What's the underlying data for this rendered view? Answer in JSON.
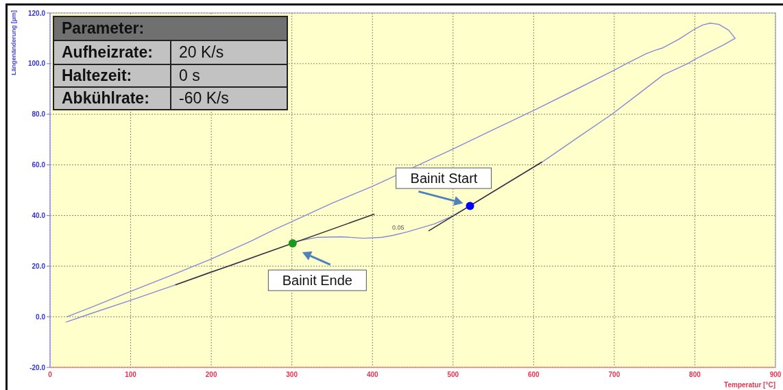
{
  "chart_data": {
    "type": "line",
    "xlabel": "Temperatur [°C]",
    "ylabel": "Längenänderung [µm]",
    "xlim": [
      0,
      900
    ],
    "xticks": [
      0,
      100,
      200,
      300,
      400,
      500,
      600,
      700,
      800,
      900
    ],
    "ylim": [
      -20,
      120
    ],
    "yticks": [
      {
        "value": -20,
        "label": "-20.0"
      },
      {
        "value": 0,
        "label": "0.0"
      },
      {
        "value": 20,
        "label": "20.0"
      },
      {
        "value": 40,
        "label": "40.0"
      },
      {
        "value": 60,
        "label": "60.0"
      },
      {
        "value": 80,
        "label": "80.0"
      },
      {
        "value": 100,
        "label": "100.0"
      },
      {
        "value": 120,
        "label": "120.0"
      }
    ],
    "grid": true,
    "series": [
      {
        "type": "line",
        "color": "#8888d8",
        "x": [
          21,
          50,
          100,
          150,
          200,
          250,
          278,
          300,
          350,
          400,
          450,
          500,
          550,
          590,
          600,
          650,
          700,
          715,
          740,
          752,
          760,
          780,
          800,
          810,
          819,
          830,
          842,
          850,
          835,
          818,
          800,
          791,
          761,
          730,
          697,
          656,
          610,
          565,
          521,
          500,
          477,
          443,
          426,
          412,
          389,
          361,
          332,
          307,
          301,
          261,
          224,
          200,
          150,
          100,
          50,
          20
        ],
        "values": [
          0,
          3.6,
          10,
          16.3,
          22.8,
          30,
          34.4,
          37.6,
          44.9,
          51.5,
          58.9,
          66.3,
          73.9,
          80,
          81.5,
          89.4,
          97.4,
          100,
          104,
          105.4,
          106.2,
          109.6,
          113.7,
          115.3,
          116,
          115.5,
          113.2,
          110,
          107.3,
          104.6,
          101.7,
          100,
          95.6,
          88,
          80,
          71.1,
          61,
          52.3,
          43.8,
          39.9,
          36.7,
          33.5,
          32.2,
          31.4,
          31,
          31.6,
          31.4,
          29.9,
          29,
          24.5,
          20.2,
          17.8,
          12,
          6.5,
          1.2,
          -2.1
        ]
      },
      {
        "type": "line",
        "color": "#333333",
        "x": [
          156,
          402
        ],
        "values": [
          12.6,
          40.5
        ]
      },
      {
        "type": "line",
        "color": "#333333",
        "x": [
          470,
          610
        ],
        "values": [
          34,
          61.1
        ]
      },
      {
        "type": "scatter",
        "color": "#0000ff",
        "marker": "circle",
        "x": [
          521
        ],
        "values": [
          43.8
        ]
      },
      {
        "type": "scatter",
        "color": "#1a9a1a",
        "marker": "circle",
        "x": [
          301
        ],
        "values": [
          29
        ]
      }
    ],
    "annotations": [
      "Parameter:",
      "Aufheizrate:",
      "20 K/s",
      "Haltezeit:",
      "0 s",
      "Abkühlrate:",
      "-60 K/s",
      {
        "text": "Bainit Start",
        "x": 521,
        "y": 43.8
      },
      {
        "text": "Bainit Ende",
        "x": 301,
        "y": 29
      },
      {
        "text": "0.05",
        "x": 432,
        "y": 32.6
      }
    ]
  }
}
